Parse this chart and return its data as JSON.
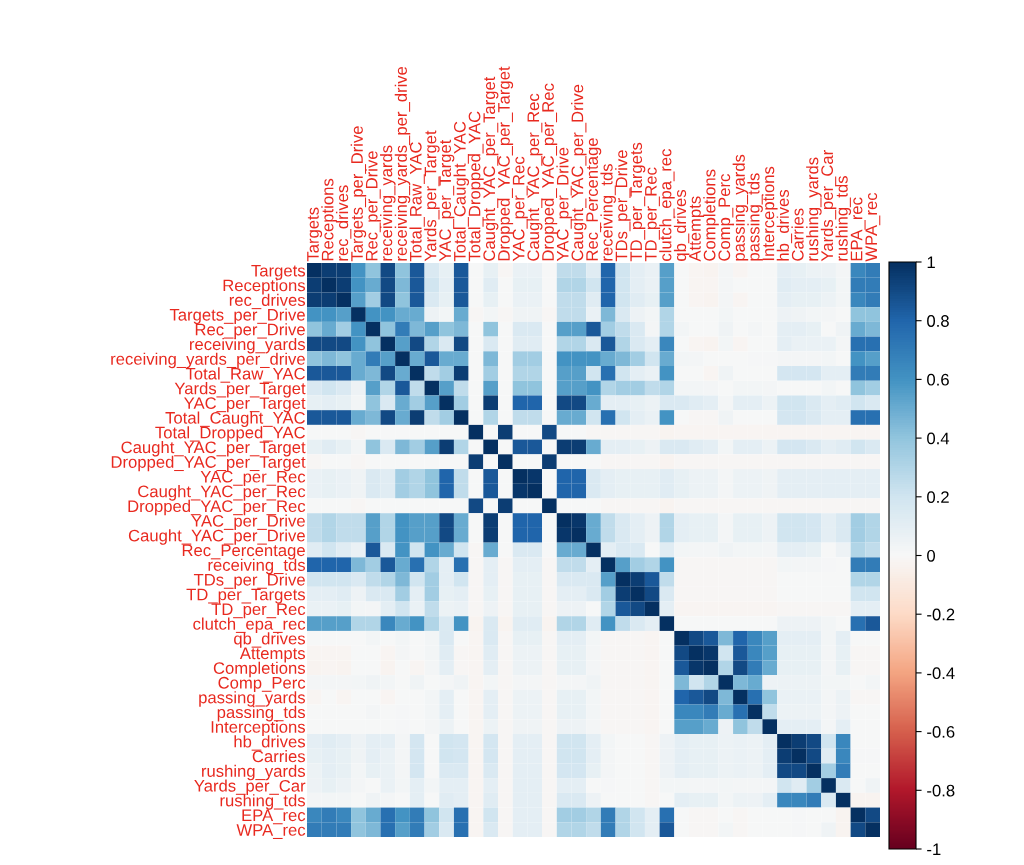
{
  "chart_data": {
    "type": "heatmap",
    "categories": [
      "Targets",
      "Receptions",
      "rec_drives",
      "Targets_per_Drive",
      "Rec_per_Drive",
      "receiving_yards",
      "receiving_yards_per_drive",
      "Total_Raw_YAC",
      "Yards_per_Target",
      "YAC_per_Target",
      "Total_Caught_YAC",
      "Total_Dropped_YAC",
      "Caught_YAC_per_Target",
      "Dropped_YAC_per_Target",
      "YAC_per_Rec",
      "Caught_YAC_per_Rec",
      "Dropped_YAC_per_Rec",
      "YAC_per_Drive",
      "Caught_YAC_per_Drive",
      "Rec_Percentage",
      "receiving_tds",
      "TDs_per_Drive",
      "TD_per_Targets",
      "TD_per_Rec",
      "clutch_epa_rec",
      "qb_drives",
      "Attempts",
      "Completions",
      "Comp_Perc",
      "passing_yards",
      "passing_tds",
      "Interceptions",
      "hb_drives",
      "Carries",
      "rushing_yards",
      "Yards_per_Car",
      "rushing_tds",
      "EPA_rec",
      "WPA_rec"
    ],
    "y_categories": [
      "Targets",
      "Receptions",
      "rec_drives",
      "Targets_per_Drive",
      "Rec_per_Drive",
      "receiving_yards",
      "receiving_yards_per_drive",
      "Total_Raw_YAC",
      "Yards_per_Target",
      "YAC_per_Target",
      "Total_Caught_YAC",
      "Total_Dropped_YAC",
      "Caught_YAC_per_Target",
      "Dropped_YAC_per_Target",
      "YAC_per_Rec",
      "Caught_YAC_per_Rec",
      "Dropped_YAC_per_Rec",
      "YAC_per_Drive",
      "Caught_YAC_per_Drive",
      "Rec_Percentage",
      "receiving_tds",
      "TDs_per_Drive",
      "TD_per_Targets",
      "TD_per_Rec",
      "clutch_epa_rec",
      "qb_drives",
      "Attempts",
      "Completions",
      "Comp_Perc",
      "passing_yards",
      "passing_tds",
      "Interceptions",
      "hb_drives",
      "Carries",
      "rushing_yards",
      "Yards_per_Car",
      "rushing_tds",
      "EPA_rec",
      "WPA_rec"
    ],
    "cells": [
      [
        1,
        0.95,
        0.95,
        0.6,
        0.4,
        0.9,
        0.4,
        0.85,
        0.15,
        0.08,
        0.85,
        0,
        0.08,
        -0.01,
        0.07,
        0.07,
        0,
        0.25,
        0.25,
        0.12,
        0.8,
        0.2,
        0.1,
        0.07,
        0.55,
        0,
        -0.02,
        -0.03,
        0.02,
        -0.02,
        0,
        0,
        0.1,
        0.08,
        0.06,
        0.05,
        0.02,
        0.65,
        0.7
      ],
      [
        0.95,
        1,
        0.95,
        0.6,
        0.5,
        0.9,
        0.45,
        0.85,
        0.2,
        0.1,
        0.85,
        0,
        0.12,
        0,
        0.08,
        0.08,
        0,
        0.3,
        0.3,
        0.2,
        0.8,
        0.2,
        0.1,
        0.07,
        0.55,
        0,
        -0.02,
        -0.02,
        0.02,
        0,
        0,
        0,
        0.12,
        0.1,
        0.1,
        0.08,
        0.03,
        0.7,
        0.7
      ],
      [
        0.95,
        0.95,
        1,
        0.55,
        0.35,
        0.9,
        0.4,
        0.85,
        0.15,
        0.08,
        0.85,
        0,
        0.08,
        0,
        0.07,
        0.07,
        0,
        0.25,
        0.25,
        0.12,
        0.8,
        0.2,
        0.12,
        0.08,
        0.55,
        0,
        -0.02,
        -0.03,
        0.02,
        -0.02,
        0,
        0,
        0.1,
        0.08,
        0.08,
        0.06,
        0.03,
        0.65,
        0.7
      ],
      [
        0.6,
        0.6,
        0.55,
        1,
        0.6,
        0.6,
        0.5,
        0.5,
        0.05,
        0.03,
        0.5,
        -0.01,
        0.03,
        -0.01,
        0.04,
        0.04,
        -0.01,
        0.25,
        0.25,
        0.07,
        0.45,
        0.15,
        0.05,
        0.03,
        0.3,
        0,
        0,
        0,
        0.03,
        0,
        0,
        0,
        0.05,
        0.04,
        0.03,
        0.02,
        0,
        0.4,
        0.4
      ],
      [
        0.4,
        0.5,
        0.35,
        0.6,
        1,
        0.4,
        0.7,
        0.45,
        0.55,
        0.4,
        0.45,
        0,
        0.4,
        0,
        0.15,
        0.15,
        0,
        0.55,
        0.55,
        0.85,
        0.35,
        0.25,
        0.15,
        0.02,
        0.3,
        0.03,
        0,
        0,
        0.04,
        0,
        0.02,
        0,
        0.1,
        0.1,
        0.08,
        0,
        0.04,
        0.5,
        0.45
      ],
      [
        0.9,
        0.9,
        0.9,
        0.6,
        0.4,
        1,
        0.55,
        0.9,
        0.3,
        0.15,
        0.9,
        0,
        0.15,
        0,
        0.12,
        0.12,
        0,
        0.3,
        0.3,
        0.15,
        0.85,
        0.3,
        0.15,
        0.1,
        0.65,
        0,
        -0.02,
        -0.03,
        0.03,
        -0.02,
        0,
        0,
        0.1,
        0.07,
        0.07,
        0.07,
        0.02,
        0.75,
        0.75
      ],
      [
        0.4,
        0.45,
        0.4,
        0.5,
        0.7,
        0.55,
        1,
        0.5,
        0.85,
        0.5,
        0.5,
        0,
        0.45,
        0,
        0.35,
        0.35,
        0,
        0.6,
        0.6,
        0.6,
        0.5,
        0.45,
        0.35,
        0.2,
        0.5,
        0.03,
        0.02,
        0,
        0,
        0,
        0.01,
        0.01,
        0.02,
        0.02,
        0.02,
        0.03,
        0,
        0.6,
        0.55
      ],
      [
        0.85,
        0.85,
        0.85,
        0.5,
        0.45,
        0.9,
        0.5,
        1,
        0.25,
        0.35,
        0.95,
        0,
        0.35,
        0,
        0.3,
        0.3,
        0,
        0.55,
        0.55,
        0.2,
        0.75,
        0.2,
        0.1,
        0.07,
        0.6,
        0,
        0,
        -0.02,
        0.04,
        0,
        0,
        0,
        0.18,
        0.18,
        0.18,
        0.1,
        0.1,
        0.7,
        0.7
      ],
      [
        0.15,
        0.2,
        0.15,
        0.05,
        0.55,
        0.3,
        0.85,
        0.25,
        1,
        0.55,
        0.25,
        0,
        0.55,
        0,
        0.4,
        0.4,
        0,
        0.55,
        0.55,
        0.6,
        0.3,
        0.35,
        0.35,
        0.25,
        0.3,
        0.03,
        0.03,
        0.02,
        0,
        0.03,
        0.03,
        0.02,
        0,
        0,
        0,
        0.03,
        0,
        0.4,
        0.35
      ],
      [
        0.08,
        0.1,
        0.08,
        0.03,
        0.4,
        0.15,
        0.5,
        0.35,
        0.55,
        1,
        0.35,
        0,
        0.95,
        0,
        0.8,
        0.8,
        0,
        0.9,
        0.9,
        0.5,
        0.1,
        0.1,
        0.08,
        0.06,
        0.15,
        0.15,
        0.12,
        0.1,
        0.02,
        0.1,
        0.1,
        0.06,
        0.2,
        0.2,
        0.15,
        0.1,
        0.12,
        0.2,
        0.15
      ],
      [
        0.85,
        0.85,
        0.85,
        0.5,
        0.45,
        0.9,
        0.5,
        0.95,
        0.25,
        0.35,
        1,
        0,
        0.3,
        0,
        0.25,
        0.25,
        0,
        0.5,
        0.5,
        0.2,
        0.75,
        0.2,
        0.1,
        0.07,
        0.6,
        0,
        -0.01,
        -0.01,
        0.04,
        0,
        0,
        0,
        0.18,
        0.18,
        0.15,
        0.1,
        0.1,
        0.75,
        0.75
      ],
      [
        0,
        0,
        0,
        -0.01,
        0,
        0,
        0,
        0,
        0,
        0,
        0,
        1,
        0,
        0.95,
        0,
        0,
        0.9,
        0,
        0,
        -0.01,
        -0.01,
        -0.01,
        -0.01,
        -0.01,
        -0.03,
        -0.02,
        -0.02,
        -0.02,
        -0.02,
        -0.02,
        -0.02,
        -0.02,
        -0.02,
        -0.02,
        -0.02,
        -0.02,
        -0.02,
        -0.02,
        -0.02
      ],
      [
        0.08,
        0.12,
        0.08,
        0.03,
        0.4,
        0.15,
        0.45,
        0.35,
        0.55,
        0.95,
        0.3,
        0,
        1,
        0,
        0.85,
        0.85,
        0,
        0.95,
        0.95,
        0.5,
        0.1,
        0.1,
        0.08,
        0.05,
        0.15,
        0.15,
        0.12,
        0.1,
        0.03,
        0.1,
        0.1,
        0.06,
        0.18,
        0.18,
        0.15,
        0.1,
        0.12,
        0.2,
        0.15
      ],
      [
        -0.01,
        0,
        0,
        -0.01,
        0,
        0,
        0,
        0,
        0,
        0,
        0,
        0.95,
        0,
        1,
        0,
        0,
        0.95,
        0,
        0,
        0,
        -0.01,
        -0.01,
        -0.01,
        -0.01,
        -0.03,
        -0.01,
        -0.01,
        -0.01,
        -0.01,
        -0.01,
        -0.01,
        -0.01,
        -0.01,
        -0.01,
        -0.01,
        -0.01,
        -0.01,
        -0.01,
        -0.01
      ],
      [
        0.07,
        0.08,
        0.07,
        0.04,
        0.15,
        0.12,
        0.35,
        0.3,
        0.4,
        0.8,
        0.25,
        0,
        0.85,
        0,
        1,
        0.97,
        0,
        0.8,
        0.8,
        0.15,
        0.1,
        0.08,
        0.08,
        0.08,
        0.12,
        0.08,
        0.06,
        0.06,
        0.02,
        0.06,
        0.06,
        0.04,
        0.1,
        0.1,
        0.1,
        0.1,
        0.1,
        0.1,
        0.1
      ],
      [
        0.07,
        0.08,
        0.07,
        0.04,
        0.15,
        0.12,
        0.35,
        0.3,
        0.4,
        0.8,
        0.25,
        0,
        0.85,
        0,
        0.97,
        1,
        0,
        0.8,
        0.8,
        0.15,
        0.1,
        0.08,
        0.08,
        0.08,
        0.12,
        0.08,
        0.06,
        0.06,
        0.02,
        0.06,
        0.06,
        0.04,
        0.1,
        0.1,
        0.1,
        0.1,
        0.1,
        0.1,
        0.1
      ],
      [
        0,
        0,
        0,
        -0.01,
        0,
        0,
        0,
        0,
        0,
        0,
        0,
        0.9,
        0,
        0.95,
        0,
        0,
        1,
        0,
        0,
        0,
        -0.01,
        -0.01,
        -0.01,
        -0.01,
        -0.03,
        -0.01,
        -0.01,
        -0.01,
        -0.01,
        -0.01,
        -0.01,
        -0.01,
        -0.01,
        -0.01,
        -0.01,
        -0.01,
        -0.01,
        -0.01,
        -0.01
      ],
      [
        0.25,
        0.3,
        0.25,
        0.25,
        0.55,
        0.3,
        0.6,
        0.55,
        0.55,
        0.9,
        0.5,
        0,
        0.95,
        0,
        0.8,
        0.8,
        0,
        1,
        0.97,
        0.5,
        0.25,
        0.15,
        0.1,
        0.05,
        0.3,
        0.1,
        0.08,
        0.08,
        0.02,
        0.08,
        0.08,
        0.05,
        0.2,
        0.2,
        0.18,
        0.1,
        0.15,
        0.35,
        0.3
      ],
      [
        0.25,
        0.3,
        0.25,
        0.25,
        0.55,
        0.3,
        0.6,
        0.55,
        0.55,
        0.9,
        0.5,
        0,
        0.95,
        0,
        0.8,
        0.8,
        0,
        0.97,
        1,
        0.5,
        0.25,
        0.15,
        0.1,
        0.05,
        0.3,
        0.1,
        0.08,
        0.08,
        0.02,
        0.08,
        0.08,
        0.05,
        0.2,
        0.2,
        0.18,
        0.1,
        0.15,
        0.35,
        0.3
      ],
      [
        0.12,
        0.2,
        0.12,
        0.07,
        0.85,
        0.15,
        0.6,
        0.2,
        0.6,
        0.5,
        0.2,
        -0.01,
        0.5,
        0,
        0.15,
        0.15,
        0,
        0.5,
        0.5,
        1,
        0.1,
        0.15,
        0.15,
        0,
        0.12,
        0.03,
        0.02,
        0.02,
        0.04,
        0.03,
        0.03,
        0.02,
        0.1,
        0.1,
        0.08,
        0,
        0.05,
        0.3,
        0.25
      ],
      [
        0.8,
        0.8,
        0.8,
        0.45,
        0.35,
        0.85,
        0.5,
        0.75,
        0.3,
        0.1,
        0.75,
        -0.01,
        0.1,
        -0.01,
        0.1,
        0.1,
        -0.01,
        0.25,
        0.25,
        0.1,
        1,
        0.55,
        0.35,
        0.3,
        0.6,
        -0.01,
        -0.01,
        -0.01,
        -0.01,
        -0.01,
        -0.01,
        -0.01,
        0.03,
        0.02,
        0.02,
        0.01,
        0,
        0.7,
        0.7
      ],
      [
        0.2,
        0.2,
        0.2,
        0.15,
        0.25,
        0.3,
        0.45,
        0.2,
        0.35,
        0.1,
        0.2,
        -0.01,
        0.1,
        -0.01,
        0.08,
        0.08,
        -0.01,
        0.15,
        0.15,
        0.15,
        0.55,
        1,
        0.95,
        0.85,
        0.25,
        -0.01,
        -0.01,
        -0.01,
        -0.01,
        -0.01,
        -0.01,
        -0.01,
        0,
        0,
        0,
        0,
        0,
        0.3,
        0.3
      ],
      [
        0.1,
        0.1,
        0.12,
        0.05,
        0.15,
        0.15,
        0.35,
        0.1,
        0.35,
        0.08,
        0.1,
        -0.01,
        0.08,
        -0.01,
        0.08,
        0.08,
        -0.01,
        0.1,
        0.1,
        0.15,
        0.35,
        0.95,
        1,
        0.9,
        0.15,
        -0.01,
        -0.01,
        -0.01,
        -0.01,
        -0.01,
        -0.01,
        -0.01,
        0,
        0,
        0,
        0,
        0,
        0.2,
        0.2
      ],
      [
        0.07,
        0.07,
        0.08,
        0.03,
        0.02,
        0.1,
        0.2,
        0.07,
        0.25,
        0.06,
        0.07,
        -0.01,
        0.05,
        -0.01,
        0.08,
        0.08,
        -0.01,
        0.05,
        0.05,
        0,
        0.3,
        0.85,
        0.9,
        1,
        0.1,
        -0.02,
        -0.02,
        -0.02,
        -0.02,
        -0.02,
        -0.02,
        -0.02,
        -0.01,
        -0.01,
        -0.01,
        -0.01,
        -0.01,
        0.1,
        0.1
      ],
      [
        0.55,
        0.55,
        0.55,
        0.3,
        0.3,
        0.65,
        0.5,
        0.6,
        0.3,
        0.15,
        0.6,
        -0.03,
        0.15,
        -0.03,
        0.12,
        0.12,
        -0.03,
        0.3,
        0.3,
        0.12,
        0.6,
        0.25,
        0.15,
        0.1,
        1,
        0,
        0,
        0,
        0,
        0,
        0,
        0,
        0.05,
        0.05,
        0.05,
        0.03,
        0,
        0.75,
        0.85
      ],
      [
        0,
        0,
        0,
        0,
        0.03,
        0,
        0.03,
        0,
        0.03,
        0.15,
        0,
        -0.02,
        0.15,
        -0.01,
        0.08,
        0.08,
        -0.01,
        0.1,
        0.1,
        0.03,
        -0.01,
        -0.01,
        -0.01,
        -0.02,
        0,
        1,
        0.9,
        0.85,
        0.45,
        0.8,
        0.65,
        0.55,
        0.1,
        0.1,
        0.1,
        0.03,
        0.1,
        0,
        0
      ],
      [
        -0.02,
        -0.02,
        -0.02,
        0,
        0,
        -0.02,
        0.02,
        0,
        0.03,
        0.12,
        -0.01,
        -0.02,
        0.12,
        -0.01,
        0.06,
        0.06,
        -0.01,
        0.08,
        0.08,
        0.02,
        -0.01,
        -0.01,
        -0.01,
        -0.02,
        0,
        0.9,
        1,
        0.97,
        0.2,
        0.85,
        0.65,
        0.55,
        0.08,
        0.08,
        0.08,
        0.02,
        0.08,
        -0.01,
        -0.01
      ],
      [
        -0.03,
        -0.02,
        -0.03,
        0,
        0,
        -0.03,
        0,
        -0.02,
        0.02,
        0.1,
        -0.01,
        -0.02,
        0.1,
        -0.01,
        0.06,
        0.06,
        -0.01,
        0.08,
        0.08,
        0.02,
        -0.01,
        -0.01,
        -0.01,
        -0.02,
        0,
        0.85,
        0.97,
        1,
        0.3,
        0.9,
        0.7,
        0.5,
        0.08,
        0.08,
        0.08,
        0.02,
        0.08,
        -0.01,
        -0.01
      ],
      [
        0.02,
        0.02,
        0.02,
        0.03,
        0.04,
        0.03,
        0,
        0.04,
        0,
        0.02,
        0.04,
        -0.02,
        0.03,
        -0.01,
        0.02,
        0.02,
        -0.01,
        0.02,
        0.02,
        0.04,
        -0.01,
        -0.01,
        -0.01,
        -0.02,
        0,
        0.45,
        0.2,
        0.3,
        1,
        0.45,
        0.5,
        0.05,
        0.06,
        0.06,
        0.06,
        0.03,
        0.03,
        0,
        0.03
      ],
      [
        -0.02,
        0,
        -0.02,
        0,
        0,
        -0.02,
        0,
        0,
        0.03,
        0.1,
        0,
        -0.02,
        0.1,
        -0.01,
        0.06,
        0.06,
        -0.01,
        0.08,
        0.08,
        0.03,
        -0.01,
        -0.01,
        -0.01,
        -0.02,
        0,
        0.8,
        0.85,
        0.9,
        0.45,
        1,
        0.75,
        0.4,
        0.07,
        0.07,
        0.07,
        0.02,
        0.06,
        -0.01,
        -0.01
      ],
      [
        0,
        0,
        0,
        0,
        0.02,
        0,
        0.01,
        0,
        0.03,
        0.1,
        0,
        -0.02,
        0.1,
        -0.01,
        0.06,
        0.06,
        -0.01,
        0.08,
        0.08,
        0.03,
        -0.01,
        -0.01,
        -0.01,
        -0.02,
        0,
        0.65,
        0.65,
        0.7,
        0.5,
        0.75,
        1,
        0.25,
        0.06,
        0.06,
        0.06,
        0.02,
        0.05,
        0,
        0
      ],
      [
        0,
        0,
        0,
        0,
        0,
        0,
        0.01,
        0,
        0.02,
        0.06,
        0,
        -0.02,
        0.06,
        -0.01,
        0.04,
        0.04,
        -0.01,
        0.05,
        0.05,
        0.02,
        -0.01,
        -0.01,
        -0.01,
        -0.02,
        0,
        0.55,
        0.55,
        0.5,
        0.05,
        0.4,
        0.25,
        1,
        0.1,
        0.1,
        0.1,
        0.02,
        0.1,
        0,
        0
      ],
      [
        0.1,
        0.12,
        0.1,
        0.05,
        0.1,
        0.1,
        0.02,
        0.18,
        0,
        0.2,
        0.18,
        -0.02,
        0.18,
        -0.01,
        0.1,
        0.1,
        -0.01,
        0.2,
        0.2,
        0.1,
        0.03,
        0,
        0,
        -0.01,
        0.05,
        0.1,
        0.08,
        0.08,
        0.06,
        0.07,
        0.06,
        0.1,
        1,
        0.95,
        0.9,
        0.2,
        0.65,
        0,
        0
      ],
      [
        0.08,
        0.1,
        0.08,
        0.04,
        0.1,
        0.07,
        0.02,
        0.18,
        0,
        0.2,
        0.18,
        -0.02,
        0.18,
        -0.01,
        0.1,
        0.1,
        -0.01,
        0.2,
        0.2,
        0.1,
        0.02,
        0,
        0,
        -0.01,
        0.05,
        0.1,
        0.08,
        0.08,
        0.06,
        0.07,
        0.06,
        0.1,
        0.95,
        1,
        0.9,
        0.12,
        0.65,
        0.01,
        0.01
      ],
      [
        0.06,
        0.1,
        0.08,
        0.03,
        0.08,
        0.07,
        0.02,
        0.18,
        0,
        0.15,
        0.15,
        -0.02,
        0.15,
        -0.01,
        0.1,
        0.1,
        -0.01,
        0.18,
        0.18,
        0.08,
        0.02,
        0,
        0,
        -0.01,
        0.05,
        0.1,
        0.08,
        0.08,
        0.06,
        0.07,
        0.06,
        0.1,
        0.9,
        0.9,
        1,
        0.35,
        0.7,
        0,
        0
      ],
      [
        0.05,
        0.08,
        0.06,
        0.02,
        0,
        0.07,
        0.03,
        0.1,
        0.03,
        0.1,
        0.1,
        -0.02,
        0.1,
        -0.01,
        0.1,
        0.1,
        -0.01,
        0.1,
        0.1,
        0,
        0.01,
        0,
        0,
        -0.01,
        0.03,
        0.03,
        0.02,
        0.02,
        0.03,
        0.02,
        0.02,
        0.02,
        0.2,
        0.12,
        0.35,
        1,
        0.15,
        0,
        0.04
      ],
      [
        0.02,
        0.03,
        0.03,
        0,
        0.04,
        0.02,
        0,
        0.1,
        0,
        0.12,
        0.1,
        -0.02,
        0.12,
        -0.01,
        0.1,
        0.1,
        -0.01,
        0.15,
        0.15,
        0.05,
        0,
        0,
        0,
        -0.01,
        0,
        0.1,
        0.08,
        0.08,
        0.03,
        0.06,
        0.05,
        0.1,
        0.65,
        0.65,
        0.7,
        0.15,
        1,
        -0.03,
        -0.03
      ],
      [
        0.65,
        0.7,
        0.65,
        0.4,
        0.5,
        0.75,
        0.6,
        0.7,
        0.4,
        0.2,
        0.75,
        -0.02,
        0.2,
        -0.01,
        0.1,
        0.1,
        -0.01,
        0.35,
        0.35,
        0.3,
        0.7,
        0.3,
        0.2,
        0.1,
        0.75,
        0,
        -0.01,
        -0.01,
        0,
        -0.01,
        0,
        0,
        0,
        0.01,
        0,
        0,
        -0.03,
        1,
        0.9
      ],
      [
        0.7,
        0.7,
        0.7,
        0.4,
        0.45,
        0.75,
        0.55,
        0.7,
        0.35,
        0.15,
        0.75,
        -0.02,
        0.15,
        -0.01,
        0.1,
        0.1,
        -0.01,
        0.3,
        0.3,
        0.25,
        0.7,
        0.3,
        0.2,
        0.1,
        0.85,
        0,
        -0.01,
        -0.01,
        0.03,
        -0.01,
        0,
        0,
        0,
        0.01,
        0,
        0.04,
        -0.03,
        0.9,
        1
      ]
    ],
    "clim": [
      -1,
      1
    ],
    "cticks": [
      -1,
      -0.8,
      -0.6,
      -0.4,
      -0.2,
      0,
      0.2,
      0.4,
      0.6,
      0.8,
      1
    ]
  }
}
